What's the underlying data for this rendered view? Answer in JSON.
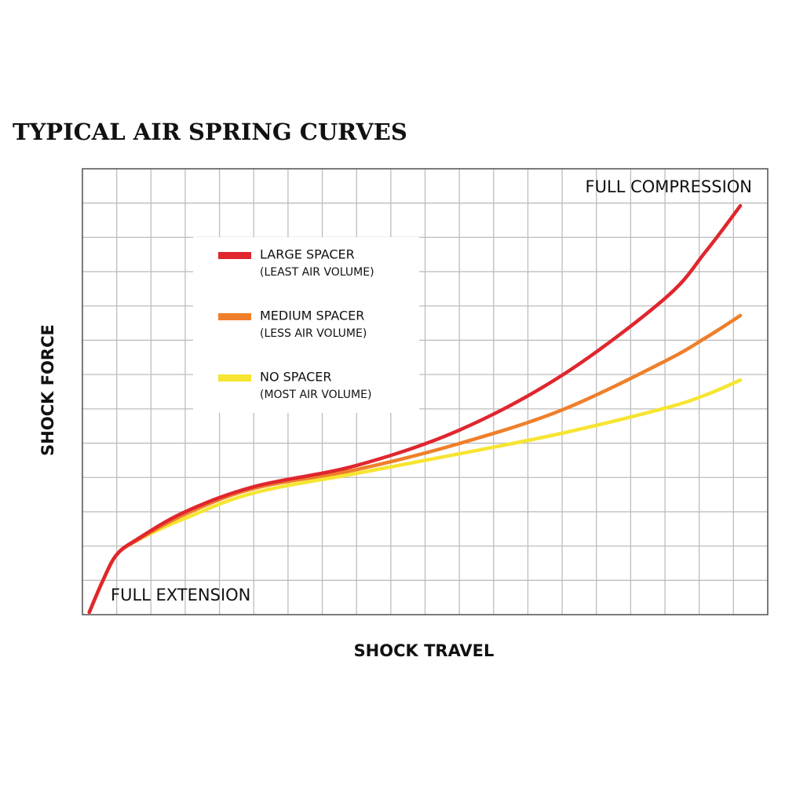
{
  "chart_data": {
    "type": "line",
    "title": "TYPICAL AIR SPRING CURVES",
    "x_label": "SHOCK TRAVEL",
    "y_label": "SHOCK FORCE",
    "annotations": [
      "FULL COMPRESSION",
      "FULL EXTENSION"
    ],
    "x": [
      0.2,
      0.6,
      1,
      1.6,
      3,
      5,
      8,
      11,
      14,
      17,
      18.2,
      19.2
    ],
    "series": [
      {
        "name": "LARGE SPACER",
        "description": "(LEAST AIR VOLUME)",
        "color": "#e0262e",
        "values": [
          0.07,
          1.0,
          1.75,
          2.2,
          3.0,
          3.73,
          4.35,
          5.38,
          6.98,
          9.22,
          10.6,
          11.92
        ]
      },
      {
        "name": "MEDIUM SPACER",
        "description": "(LESS AIR VOLUME)",
        "color": "#ef7f2a",
        "values": [
          0.07,
          1.0,
          1.75,
          2.17,
          2.93,
          3.68,
          4.23,
          4.99,
          5.97,
          7.39,
          8.08,
          8.72
        ]
      },
      {
        "name": "NO SPACER",
        "description": "(MOST AIR VOLUME)",
        "color": "#f6e532",
        "values": [
          0.07,
          1.0,
          1.75,
          2.17,
          2.81,
          3.55,
          4.12,
          4.69,
          5.29,
          6.02,
          6.41,
          6.84
        ]
      }
    ],
    "xlim": [
      0,
      20
    ],
    "ylim": [
      0,
      13
    ],
    "xticks": [
      0,
      1,
      2,
      3,
      4,
      5,
      6,
      7,
      8,
      9,
      10,
      11,
      12,
      13,
      14,
      15,
      16,
      17,
      18,
      19,
      20
    ],
    "yticks": [
      0,
      1,
      2,
      3,
      4,
      5,
      6,
      7,
      8,
      9,
      10,
      11,
      12,
      13
    ],
    "grid": true
  }
}
